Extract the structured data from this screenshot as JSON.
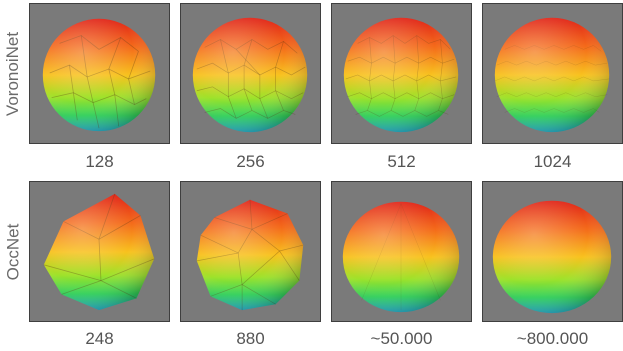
{
  "rows": [
    {
      "label": "VoronoiNet",
      "captions": [
        "128",
        "256",
        "512",
        "1024"
      ]
    },
    {
      "label": "OccNet",
      "captions": [
        "248",
        "880",
        "~50.000",
        "~800.000"
      ]
    }
  ],
  "colors": {
    "panel_bg": "#7a7a7a",
    "panel_border": "#3f3f3f",
    "gradient": [
      "#e02418",
      "#f46a1a",
      "#f8c21e",
      "#9ee22a",
      "#2fd65a",
      "#27b6d2"
    ]
  }
}
